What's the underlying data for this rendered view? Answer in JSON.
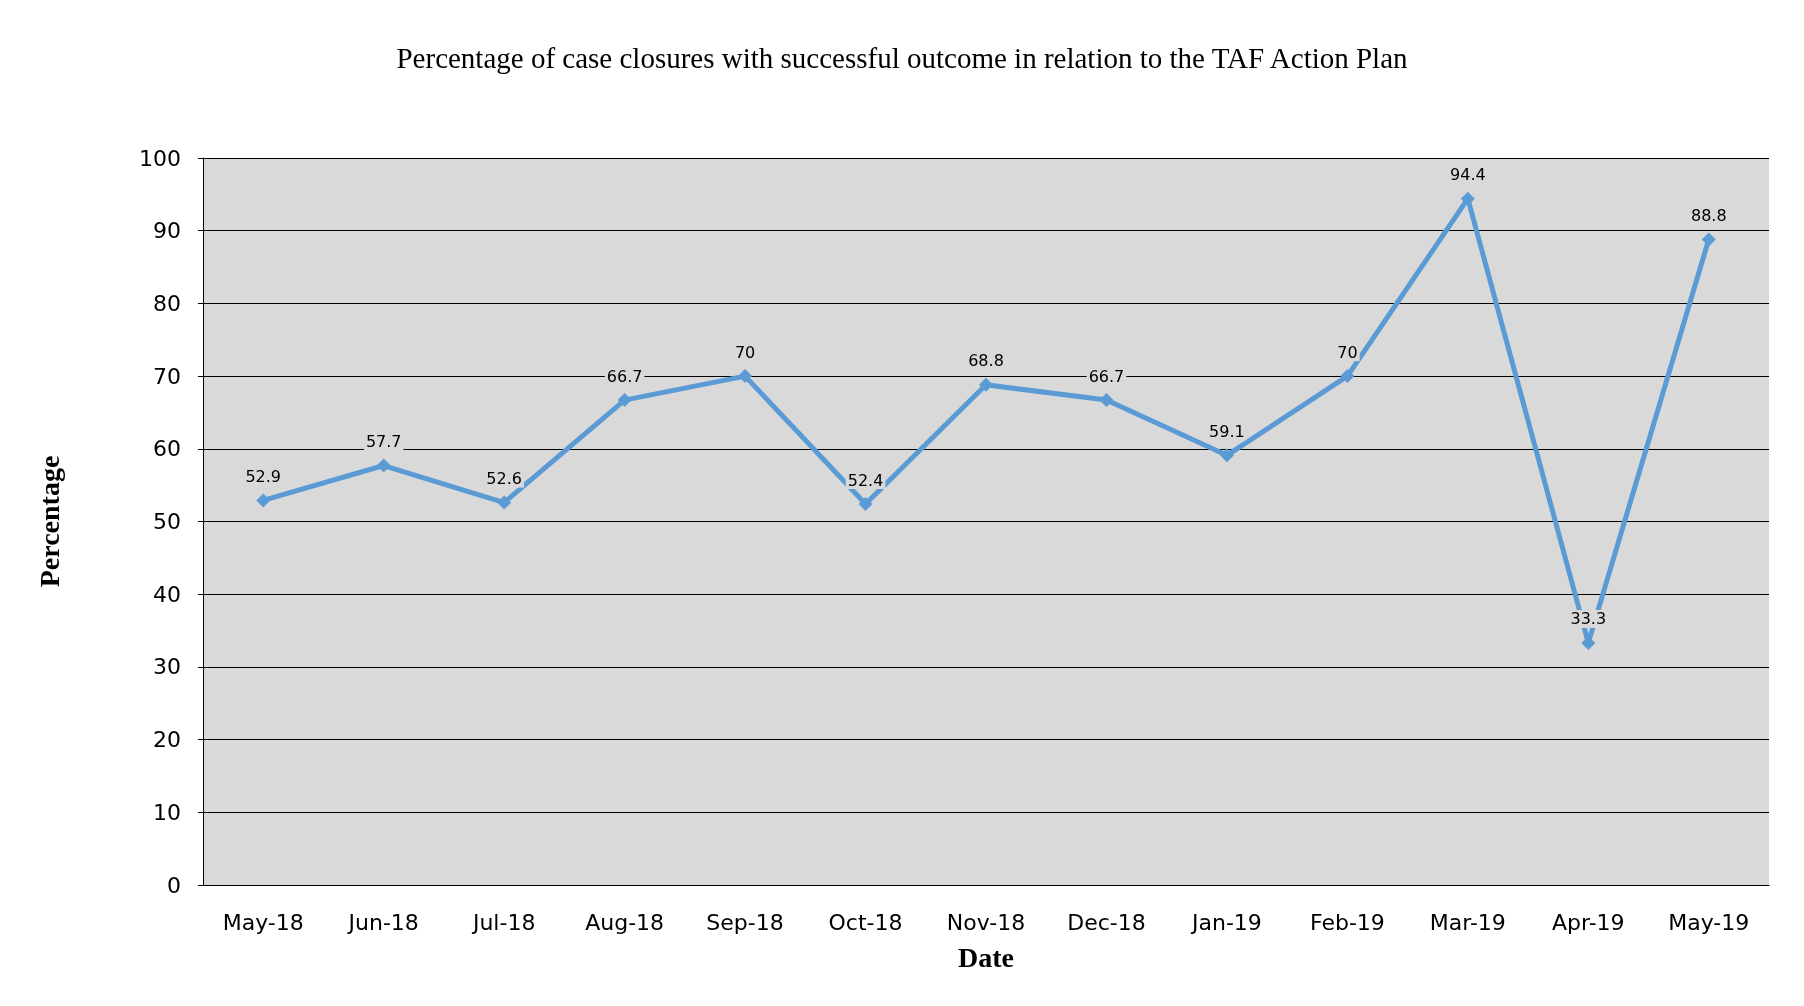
{
  "chart_data": {
    "type": "line",
    "title": "Percentage of case closures with successful outcome in relation to the TAF Action Plan",
    "xlabel": "Date",
    "ylabel": "Percentage",
    "categories": [
      "May-18",
      "Jun-18",
      "Jul-18",
      "Aug-18",
      "Sep-18",
      "Oct-18",
      "Nov-18",
      "Dec-18",
      "Jan-19",
      "Feb-19",
      "Mar-19",
      "Apr-19",
      "May-19"
    ],
    "series": [
      {
        "color": "#5b9bd5",
        "values": [
          52.9,
          57.7,
          52.6,
          66.7,
          70,
          52.4,
          68.8,
          66.7,
          59.1,
          70,
          94.4,
          33.3,
          88.8
        ]
      }
    ],
    "ylim": [
      0,
      100
    ],
    "yticks": [
      0,
      10,
      20,
      30,
      40,
      50,
      60,
      70,
      80,
      90,
      100
    ],
    "grid": "y",
    "data_labels": true,
    "marker": "diamond",
    "line_style": "solid"
  }
}
